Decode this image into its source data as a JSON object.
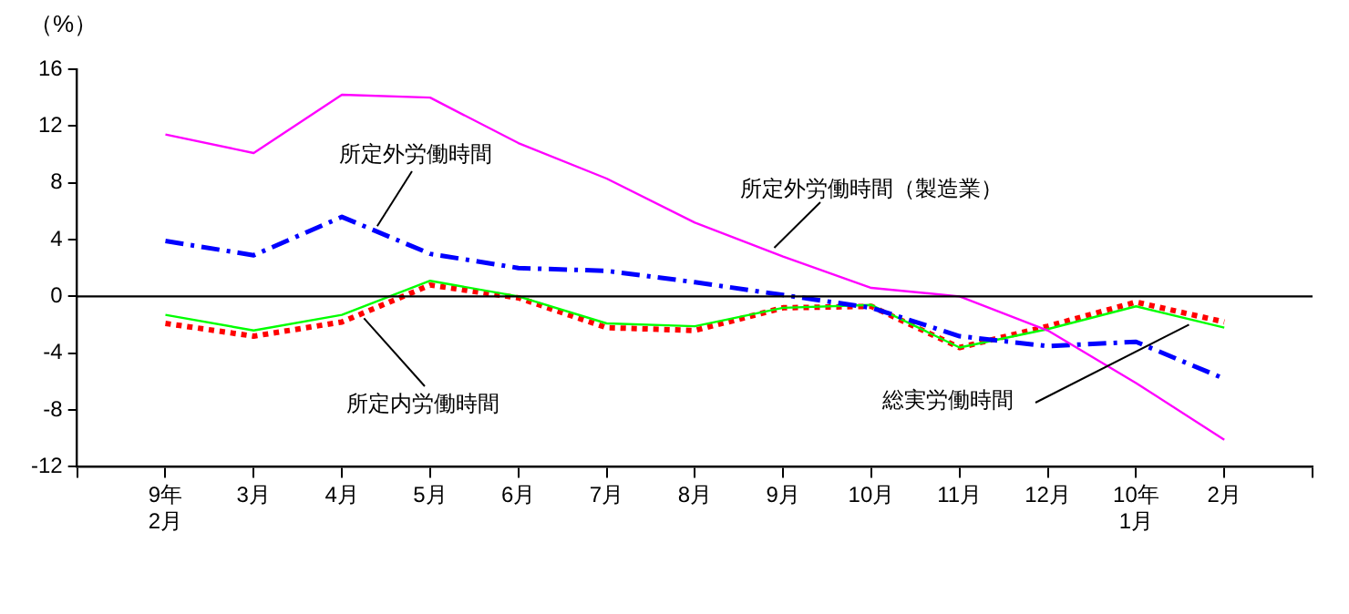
{
  "chart_data": {
    "type": "line",
    "ylabel": "（%）",
    "categories": [
      "9年\n2月",
      "3月",
      "4月",
      "5月",
      "6月",
      "7月",
      "8月",
      "9月",
      "10月",
      "11月",
      "12月",
      "10年\n1月",
      "2月"
    ],
    "series": [
      {
        "name": "所定外労働時間（製造業）",
        "color": "#ff00ff",
        "line_style": "solid",
        "values": [
          11.4,
          10.1,
          14.2,
          14.0,
          10.8,
          8.3,
          5.2,
          2.8,
          0.6,
          0.0,
          -2.4,
          -6.1,
          -10.1
        ]
      },
      {
        "name": "所定外労働時間",
        "color": "#0000ff",
        "line_style": "dashed",
        "values": [
          3.9,
          2.9,
          5.6,
          3.0,
          2.0,
          1.8,
          1.0,
          0.1,
          -0.8,
          -2.8,
          -3.5,
          -3.2,
          -5.8
        ]
      },
      {
        "name": "総実労働時間",
        "color": "#00ff00",
        "line_style": "solid",
        "values": [
          -1.3,
          -2.4,
          -1.3,
          1.1,
          0.0,
          -1.9,
          -2.1,
          -0.8,
          -0.6,
          -3.6,
          -2.3,
          -0.7,
          -2.2
        ]
      },
      {
        "name": "所定内労働時間",
        "color": "#ff0000",
        "line_style": "dotted",
        "values": [
          -1.9,
          -2.8,
          -1.8,
          0.8,
          -0.1,
          -2.2,
          -2.4,
          -0.8,
          -0.7,
          -3.6,
          -2.1,
          -0.4,
          -1.8
        ]
      }
    ],
    "ylim": [
      -12,
      16
    ],
    "yticks": [
      -12,
      -8,
      -4,
      0,
      4,
      8,
      12,
      16
    ],
    "ref_lines": [
      {
        "axis": "y",
        "value": 0,
        "color": "#000000"
      }
    ],
    "grid": false,
    "legend": false,
    "marker": "none"
  }
}
